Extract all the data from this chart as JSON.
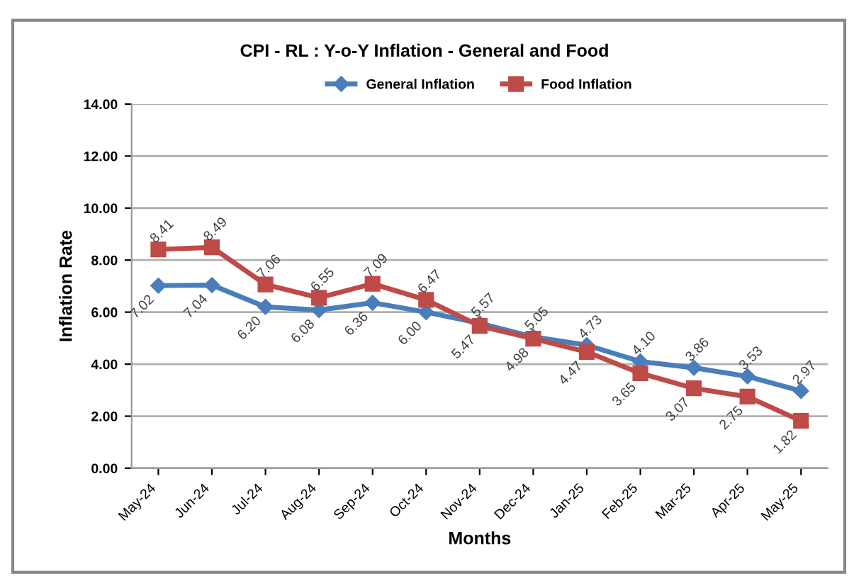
{
  "chart_data": {
    "type": "line",
    "title": "CPI - RL : Y-o-Y Inflation - General and Food",
    "xlabel": "Months",
    "ylabel": "Inflation Rate",
    "categories": [
      "May-24",
      "Jun-24",
      "Jul-24",
      "Aug-24",
      "Sep-24",
      "Oct-24",
      "Nov-24",
      "Dec-24",
      "Jan-25",
      "Feb-25",
      "Mar-25",
      "Apr-25",
      "May-25"
    ],
    "series": [
      {
        "name": "General Inflation",
        "color": "#4a7ebb",
        "marker": "diamond",
        "values": [
          7.02,
          7.04,
          6.2,
          6.08,
          6.36,
          6.0,
          5.57,
          5.05,
          4.73,
          4.1,
          3.86,
          3.53,
          2.97
        ],
        "value_labels": [
          "7.02",
          "7.04",
          "6.20",
          "6.08",
          "6.36",
          "6.00",
          "5.57",
          "5.05",
          "4.73",
          "4.10",
          "3.86",
          "3.53",
          "2.97"
        ]
      },
      {
        "name": "Food Inflation",
        "color": "#be4b48",
        "marker": "square",
        "values": [
          8.41,
          8.49,
          7.06,
          6.55,
          7.09,
          6.47,
          5.47,
          4.98,
          4.47,
          3.65,
          3.07,
          2.75,
          1.82
        ],
        "value_labels": [
          "8.41",
          "8.49",
          "7.06",
          "6.55",
          "7.09",
          "6.47",
          "5.47",
          "4.98",
          "4.47",
          "3.65",
          "3.07",
          "2.75",
          "1.82"
        ]
      }
    ],
    "ylim": [
      0,
      14
    ],
    "yticks": [
      {
        "value": 0,
        "label": "0.00"
      },
      {
        "value": 2,
        "label": "2.00"
      },
      {
        "value": 4,
        "label": "4.00"
      },
      {
        "value": 6,
        "label": "6.00"
      },
      {
        "value": 8,
        "label": "8.00"
      },
      {
        "value": 10,
        "label": "10.00"
      },
      {
        "value": 12,
        "label": "12.00"
      },
      {
        "value": 14,
        "label": "14.00"
      }
    ],
    "grid": "y",
    "legend": "top",
    "line_style": "solid"
  }
}
